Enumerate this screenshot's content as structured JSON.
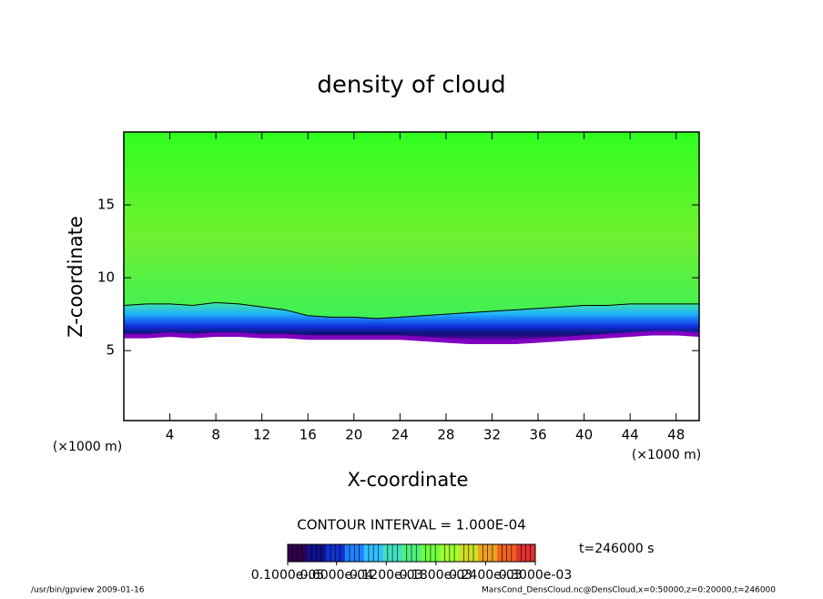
{
  "chart_data": {
    "type": "field",
    "title": "density of cloud",
    "xlabel": "X-coordinate",
    "ylabel": "Z-coordinate",
    "xunits": "(×1000 m)",
    "yunits": "(×1000 m)",
    "x": [
      0,
      2,
      4,
      6,
      8,
      10,
      12,
      14,
      16,
      18,
      20,
      22,
      24,
      26,
      28,
      30,
      32,
      34,
      36,
      38,
      40,
      42,
      44,
      46,
      48,
      50
    ],
    "series": [
      {
        "values": [
          6.0,
          6.0,
          6.1,
          6.0,
          6.1,
          6.1,
          6.0,
          6.0,
          5.9,
          5.9,
          5.9,
          5.9,
          5.9,
          5.8,
          5.7,
          5.6,
          5.6,
          5.6,
          5.7,
          5.8,
          5.9,
          6.0,
          6.1,
          6.2,
          6.2,
          6.1
        ],
        "color": "#8000c0"
      },
      {
        "values": [
          8.1,
          8.2,
          8.2,
          8.1,
          8.3,
          8.2,
          8.0,
          7.8,
          7.4,
          7.3,
          7.3,
          7.2,
          7.3,
          7.4,
          7.5,
          7.6,
          7.7,
          7.8,
          7.9,
          8.0,
          8.1,
          8.1,
          8.2,
          8.2,
          8.2,
          8.2
        ],
        "color": "#000000"
      }
    ],
    "field_color": "#44ff10",
    "xlim": [
      0,
      50
    ],
    "ylim": [
      0.2,
      20
    ],
    "xticks": [
      4,
      8,
      12,
      16,
      20,
      24,
      28,
      32,
      36,
      40,
      44,
      48
    ],
    "yticks": [
      5,
      10,
      15
    ],
    "contour_interval": "CONTOUR INTERVAL = 1.000E-04",
    "time": "t=246000 s",
    "colorbar": {
      "clim": [
        1e-06,
        0.0003
      ],
      "colors": [
        "#300050",
        "#10108a",
        "#1030d0",
        "#2080ff",
        "#30c0ff",
        "#40e0c0",
        "#50f080",
        "#70ff40",
        "#a0ff30",
        "#d0e020",
        "#f0a020",
        "#f06020",
        "#e03030"
      ],
      "ticks": [
        {
          "value": 1e-06,
          "label": "0.1000e-05"
        },
        {
          "value": 6e-05,
          "label": "0.6000e-04"
        },
        {
          "value": 0.00012,
          "label": "0.1200e-03"
        },
        {
          "value": 0.00018,
          "label": "0.1800e-03"
        },
        {
          "value": 0.00024,
          "label": "0.2400e-03"
        },
        {
          "value": 0.0003,
          "label": "0.3000e-03"
        }
      ]
    },
    "footer_left": "/usr/bin/gpview   2009-01-16",
    "footer_right": "MarsCond_DensCloud.nc@DensCloud,x=0:50000,z=0:20000,t=246000"
  }
}
